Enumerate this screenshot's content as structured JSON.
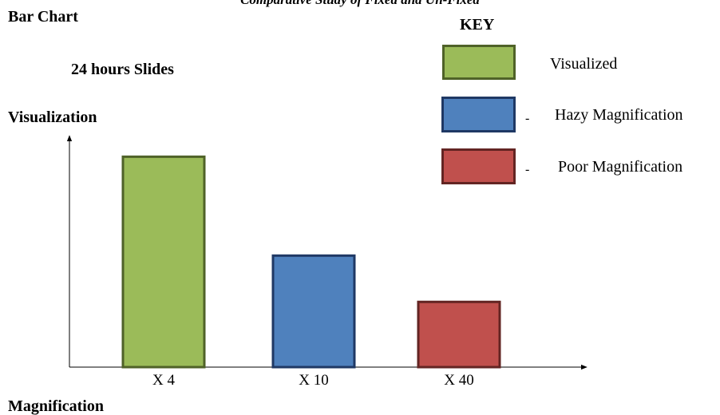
{
  "caption": "Comparative Study of Fixed and Un-Fixed",
  "title": "Bar Chart",
  "subtitle": "24 hours Slides",
  "key": {
    "title": "KEY",
    "items": [
      {
        "label": "Visualized",
        "color": "#9bbb59",
        "border": "#4f6228",
        "dash": ""
      },
      {
        "label": "Hazy Magnification",
        "color": "#4f81bd",
        "border": "#1f3864",
        "dash": "-"
      },
      {
        "label": "Poor Magnification",
        "color": "#c0504d",
        "border": "#632523",
        "dash": "-"
      }
    ]
  },
  "chart_data": {
    "type": "bar",
    "title": "Bar Chart",
    "subtitle": "24 hours Slides",
    "xlabel": "Magnification",
    "ylabel": "Visualization",
    "categories": [
      "X 4",
      "X 10",
      "X 40"
    ],
    "values": [
      100,
      53,
      31
    ],
    "colors": [
      "#9bbb59",
      "#4f81bd",
      "#c0504d"
    ],
    "border_colors": [
      "#4f6228",
      "#1f3864",
      "#632523"
    ],
    "ylim": [
      0,
      110
    ],
    "grid": false,
    "legend_position": "top-right"
  }
}
